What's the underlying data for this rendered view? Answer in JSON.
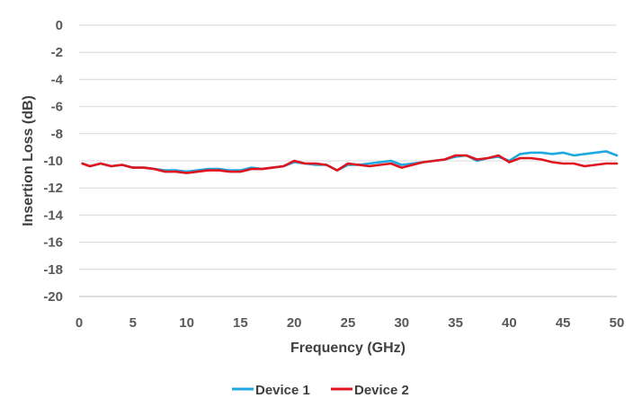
{
  "chart_data": {
    "type": "line",
    "title": "",
    "xlabel": "Frequency (GHz)",
    "ylabel": "Insertion Loss (dB)",
    "xlim": [
      0,
      50
    ],
    "ylim": [
      -20,
      0
    ],
    "xticks": [
      0,
      5,
      10,
      15,
      20,
      25,
      30,
      35,
      40,
      45,
      50
    ],
    "yticks": [
      0,
      -2,
      -4,
      -6,
      -8,
      -10,
      -12,
      -14,
      -16,
      -18,
      -20
    ],
    "grid": "horizontal",
    "legend_position": "bottom",
    "series": [
      {
        "name": "Device 1",
        "color": "#1FA8E0",
        "x": [
          0.3,
          1,
          2,
          3,
          4,
          5,
          6,
          7,
          8,
          9,
          10,
          11,
          12,
          13,
          14,
          15,
          16,
          17,
          18,
          19,
          20,
          21,
          22,
          23,
          24,
          25,
          26,
          27,
          28,
          29,
          30,
          31,
          32,
          33,
          34,
          35,
          36,
          37,
          38,
          39,
          40,
          41,
          42,
          43,
          44,
          45,
          46,
          47,
          48,
          49,
          50
        ],
        "y": [
          -10.2,
          -10.4,
          -10.2,
          -10.4,
          -10.3,
          -10.5,
          -10.5,
          -10.6,
          -10.7,
          -10.7,
          -10.8,
          -10.7,
          -10.6,
          -10.6,
          -10.7,
          -10.7,
          -10.5,
          -10.6,
          -10.5,
          -10.4,
          -10.1,
          -10.2,
          -10.3,
          -10.3,
          -10.7,
          -10.3,
          -10.3,
          -10.2,
          -10.1,
          -10.0,
          -10.3,
          -10.2,
          -10.1,
          -10.0,
          -9.9,
          -9.7,
          -9.6,
          -10.0,
          -9.8,
          -9.7,
          -10.0,
          -9.5,
          -9.4,
          -9.4,
          -9.5,
          -9.4,
          -9.6,
          -9.5,
          -9.4,
          -9.3,
          -9.6
        ]
      },
      {
        "name": "Device 2",
        "color": "#E0141E",
        "x": [
          0.3,
          1,
          2,
          3,
          4,
          5,
          6,
          7,
          8,
          9,
          10,
          11,
          12,
          13,
          14,
          15,
          16,
          17,
          18,
          19,
          20,
          21,
          22,
          23,
          24,
          25,
          26,
          27,
          28,
          29,
          30,
          31,
          32,
          33,
          34,
          35,
          36,
          37,
          38,
          39,
          40,
          41,
          42,
          43,
          44,
          45,
          46,
          47,
          48,
          49,
          50
        ],
        "y": [
          -10.2,
          -10.4,
          -10.2,
          -10.4,
          -10.3,
          -10.5,
          -10.5,
          -10.6,
          -10.8,
          -10.8,
          -10.9,
          -10.8,
          -10.7,
          -10.7,
          -10.8,
          -10.8,
          -10.6,
          -10.6,
          -10.5,
          -10.4,
          -10.0,
          -10.2,
          -10.2,
          -10.3,
          -10.7,
          -10.2,
          -10.3,
          -10.4,
          -10.3,
          -10.2,
          -10.5,
          -10.3,
          -10.1,
          -10.0,
          -9.9,
          -9.6,
          -9.6,
          -9.9,
          -9.8,
          -9.6,
          -10.1,
          -9.8,
          -9.8,
          -9.9,
          -10.1,
          -10.2,
          -10.2,
          -10.4,
          -10.3,
          -10.2,
          -10.2
        ]
      }
    ]
  }
}
